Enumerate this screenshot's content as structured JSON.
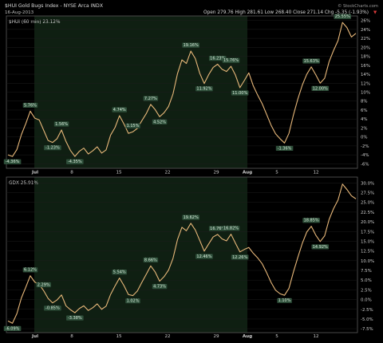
{
  "header": {
    "symbol_line": "$HUI Gold Bugs Index - NYSE Arca INDX",
    "date": "16-Aug-2013",
    "quote": "Open 279.76  High 281.61  Low 268.40  Close 271.14  Chg -5.35 (-1.93%)",
    "chg_arrow": "▼",
    "watermark": "© StockCharts.com"
  },
  "colors": {
    "background": "#000000",
    "shade": "#0f1f12",
    "line": "#e8b87a",
    "label_bg": "#2e4f3a",
    "label_text": "#d7ead9",
    "axis_text": "#cfcfcf",
    "legend_text": "#cfcfcf",
    "chg_red": "#d93a3a",
    "frame": "#5a5a5a",
    "gridline": "#1d1d1d"
  },
  "x_axis": {
    "labels": [
      "Jul",
      "8",
      "15",
      "22",
      "29",
      "Aug",
      "5",
      "12"
    ]
  },
  "chart_data": [
    {
      "type": "line",
      "legend": "$HUI (60 min) 23.12%",
      "ylim": [
        -7,
        27
      ],
      "yticks": [
        "26%",
        "24%",
        "22%",
        "20%",
        "18%",
        "16%",
        "14%",
        "12%",
        "10%",
        "8%",
        "6%",
        "4%",
        "2%",
        "0%",
        "-2%",
        "-4%",
        "-6%"
      ],
      "ytick_values": [
        26,
        24,
        22,
        20,
        18,
        16,
        14,
        12,
        10,
        8,
        6,
        4,
        2,
        0,
        -2,
        -4,
        -6
      ],
      "annotations": [
        "-4.36%",
        "5.76%",
        "1.56%",
        "-1.23%",
        "-4.35%",
        "4.74%",
        "1.15%",
        "7.27%",
        "4.52%",
        "19.16%",
        "11.92%",
        "16.23%",
        "15.76%",
        "11.00%",
        "-1.36%",
        "15.63%",
        "12.00%",
        "25.55%"
      ],
      "annotation_values": [
        -4.36,
        5.76,
        1.56,
        -1.23,
        -4.35,
        4.74,
        1.15,
        7.27,
        4.52,
        19.16,
        11.92,
        16.23,
        15.76,
        11.0,
        -1.36,
        15.63,
        12.0,
        25.55
      ],
      "series": [
        {
          "values": [
            -4.0,
            -4.36,
            -2.8,
            0.5,
            3.0,
            5.76,
            4.2,
            3.8,
            1.5,
            -0.8,
            -1.23,
            -0.4,
            1.56,
            -1.0,
            -3.0,
            -4.35,
            -3.2,
            -2.5,
            -3.8,
            -3.1,
            -2.2,
            -3.6,
            -2.9,
            0.4,
            2.1,
            4.74,
            2.9,
            0.8,
            1.15,
            1.9,
            3.6,
            5.2,
            7.27,
            6.1,
            4.52,
            5.4,
            6.8,
            9.6,
            14.1,
            17.2,
            16.4,
            19.16,
            17.5,
            14.2,
            11.92,
            13.9,
            15.5,
            16.23,
            15.1,
            14.6,
            15.76,
            13.8,
            11.0,
            12.6,
            14.3,
            11.4,
            9.3,
            7.4,
            5.0,
            2.6,
            0.7,
            -0.4,
            -1.36,
            0.8,
            4.9,
            8.5,
            11.6,
            14.0,
            15.63,
            13.9,
            12.0,
            13.1,
            16.8,
            19.3,
            21.5,
            25.55,
            24.4,
            22.3,
            23.12
          ]
        }
      ]
    },
    {
      "type": "line",
      "legend": "GDX 25.91%",
      "ylim": [
        -8.5,
        31.5
      ],
      "yticks": [
        "30.0%",
        "27.5%",
        "25.0%",
        "22.5%",
        "20.0%",
        "17.5%",
        "15.0%",
        "12.5%",
        "10.0%",
        "7.5%",
        "5.0%",
        "2.5%",
        "0.0%",
        "-2.5%",
        "-5.0%",
        "-7.5%"
      ],
      "ytick_values": [
        30,
        27.5,
        25,
        22.5,
        20,
        17.5,
        15,
        12.5,
        10,
        7.5,
        5,
        2.5,
        0,
        -2.5,
        -5,
        -7.5
      ],
      "annotations": [
        "-6.09%",
        "6.12%",
        "2.29%",
        "-0.85%",
        "-3.38%",
        "5.54%",
        "1.02%",
        "8.66%",
        "4.73%",
        "19.62%",
        "12.46%",
        "16.76%",
        "16.82%",
        "12.26%",
        "1.10%",
        "18.85%",
        "14.92%"
      ],
      "annotation_values": [
        -6.09,
        6.12,
        2.29,
        -0.85,
        -3.38,
        5.54,
        1.02,
        8.66,
        4.73,
        19.62,
        12.46,
        16.76,
        16.82,
        12.26,
        1.1,
        18.85,
        14.92
      ],
      "series": [
        {
          "values": [
            -5.5,
            -6.09,
            -3.6,
            0.4,
            3.2,
            6.12,
            4.5,
            3.9,
            2.29,
            0.3,
            -0.85,
            -0.1,
            1.2,
            -1.6,
            -2.6,
            -3.38,
            -2.3,
            -1.6,
            -2.8,
            -2.1,
            -1.1,
            -2.5,
            -1.7,
            1.3,
            3.5,
            5.54,
            3.6,
            1.3,
            1.02,
            2.2,
            4.4,
            6.5,
            8.66,
            7.1,
            4.73,
            5.9,
            7.6,
            10.6,
            15.4,
            18.6,
            17.7,
            19.62,
            17.9,
            15.2,
            12.46,
            14.3,
            16.1,
            16.76,
            15.6,
            15.1,
            16.82,
            14.5,
            12.26,
            12.9,
            13.4,
            11.9,
            10.7,
            9.2,
            6.9,
            4.4,
            2.4,
            1.5,
            1.1,
            2.9,
            7.1,
            10.9,
            14.5,
            17.4,
            18.85,
            16.6,
            14.92,
            16.4,
            20.6,
            23.4,
            25.6,
            29.7,
            28.3,
            26.7,
            25.91
          ]
        }
      ]
    }
  ]
}
